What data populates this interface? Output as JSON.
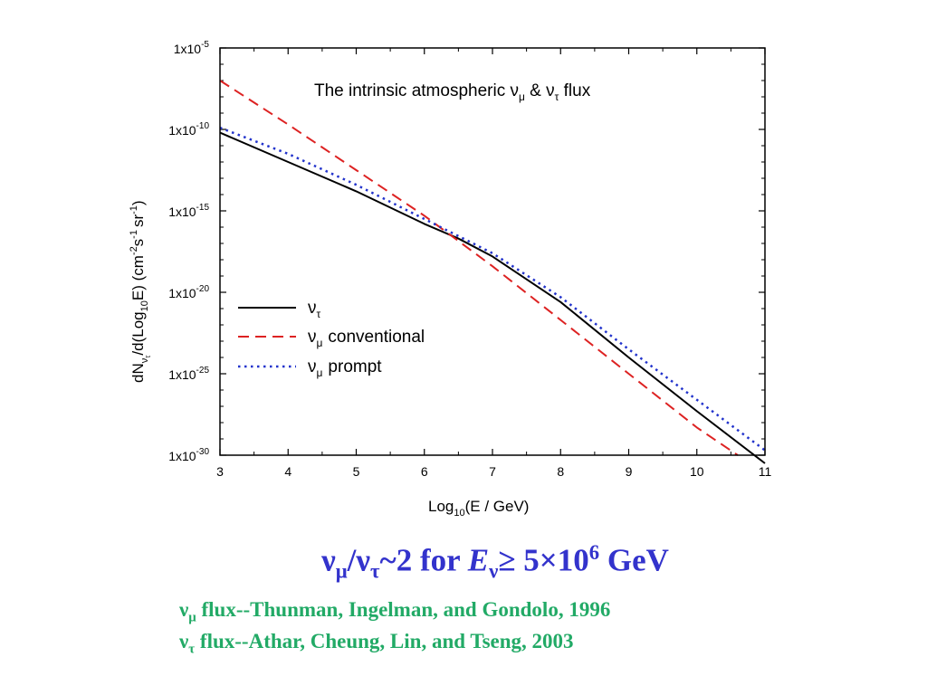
{
  "chart_data": {
    "type": "line",
    "title": {
      "pre": "The intrinsic atmospheric ",
      "nu1": "ν",
      "sub1": "μ",
      "mid": " & ",
      "nu2": "ν",
      "sub2": "τ",
      "post": " flux"
    },
    "xlabel": {
      "pre": "Log",
      "sub": "10",
      "post": "(E / GeV)"
    },
    "ylabel": {
      "a": "dN",
      "a_sub": "ν",
      "a_subsub": "τ",
      "b": "/d(Log",
      "b_sub": "10",
      "c": "E) (cm",
      "c_sup": "-2",
      "d": "s",
      "d_sup": "-1",
      "e": "sr",
      "e_sup": "-1",
      "f": ")"
    },
    "x_ticks": [
      "3",
      "4",
      "5",
      "6",
      "7",
      "8",
      "9",
      "10",
      "11"
    ],
    "y_tick_exponents": [
      "-30",
      "-25",
      "-20",
      "-15",
      "-10",
      "-5"
    ],
    "y_tick_prefix": "1x10",
    "xlim": [
      3,
      11
    ],
    "ylim_log10": [
      -30,
      -5
    ],
    "log_y": true,
    "legend_placement": "lower-left",
    "series": [
      {
        "name": {
          "nu": "ν",
          "sub": "τ",
          "text": ""
        },
        "color": "#000000",
        "style": "solid",
        "x": [
          3,
          4,
          5,
          6,
          6.5,
          7,
          8,
          9,
          10,
          11
        ],
        "log10_y": [
          -10.2,
          -12.0,
          -13.8,
          -15.8,
          -16.7,
          -17.8,
          -20.6,
          -24.0,
          -27.3,
          -30.5
        ]
      },
      {
        "name": {
          "nu": "ν",
          "sub": "μ",
          "text": "conventional"
        },
        "color": "#dd2222",
        "style": "dashed",
        "x": [
          3,
          4,
          5,
          6,
          7,
          8,
          9,
          10,
          10.6
        ],
        "log10_y": [
          -7.0,
          -9.7,
          -12.5,
          -15.3,
          -18.4,
          -21.7,
          -25.0,
          -28.3,
          -30.0
        ]
      },
      {
        "name": {
          "nu": "ν",
          "sub": "μ",
          "text": "prompt"
        },
        "color": "#2233cc",
        "style": "dotted",
        "x": [
          3,
          4,
          5,
          6,
          7,
          8,
          9,
          10,
          11
        ],
        "log10_y": [
          -9.9,
          -11.5,
          -13.4,
          -15.5,
          -17.6,
          -20.3,
          -23.5,
          -26.6,
          -29.7
        ]
      }
    ]
  },
  "headline": {
    "nu1": "ν",
    "sub1": "μ",
    "slash": "/",
    "nu2": "ν",
    "sub2": "τ",
    "ratio": "~2 for ",
    "E": "E",
    "Esub": "ν",
    "rest": "≥ 5×10",
    "exp": "6",
    "unit": " GeV"
  },
  "citations": [
    {
      "nu": "ν",
      "sub": "μ",
      "text": " flux--Thunman, Ingelman,  and Gondolo, 1996"
    },
    {
      "nu": "ν",
      "sub": "τ",
      "text": " flux--Athar, Cheung, Lin, and Tseng, 2003"
    }
  ]
}
